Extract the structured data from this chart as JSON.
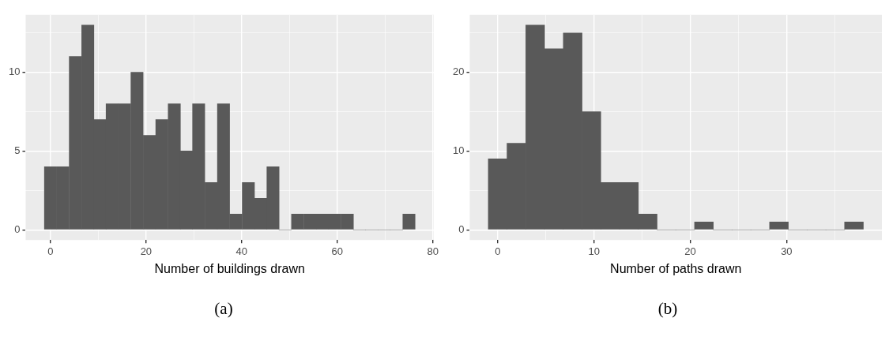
{
  "chart_data": [
    {
      "type": "histogram",
      "xlabel": "Number of buildings drawn",
      "color": "#595959",
      "grid": true,
      "bins": [
        -1.3,
        1.3,
        3.9,
        6.5,
        9.1,
        11.6,
        14.2,
        16.8,
        19.4,
        22.0,
        24.6,
        27.2,
        29.7,
        32.3,
        34.9,
        37.5,
        40.1,
        42.7,
        45.3,
        47.8,
        50.4,
        53.0,
        55.6,
        58.2,
        60.8,
        63.4,
        65.9,
        68.5,
        71.1,
        73.7,
        76.3
      ],
      "values": [
        4,
        4,
        11,
        13,
        7,
        8,
        8,
        10,
        6,
        7,
        8,
        5,
        8,
        3,
        8,
        1,
        3,
        2,
        4,
        0,
        1,
        1,
        1,
        1,
        1,
        0,
        0,
        0,
        0,
        1
      ],
      "xlim": [
        -5.2,
        80.2
      ],
      "xticks": [
        0,
        {
          "value": 10,
          "label": null
        },
        20,
        {
          "value": 30,
          "label": null
        },
        40,
        {
          "value": 50,
          "label": null
        },
        60,
        {
          "value": 70,
          "label": null
        },
        80
      ],
      "ylim": [
        -0.65,
        13.65
      ],
      "yticks": [
        0,
        {
          "value": 2.5,
          "label": null
        },
        5,
        {
          "value": 7.5,
          "label": null
        },
        10,
        {
          "value": 12.5,
          "label": null
        }
      ],
      "annotations": [
        "(a)"
      ]
    },
    {
      "type": "histogram",
      "xlabel": "Number of paths drawn",
      "color": "#595959",
      "grid": true,
      "bins": [
        -0.97,
        0.97,
        2.92,
        4.87,
        6.82,
        8.76,
        10.71,
        12.66,
        14.61,
        16.55,
        18.5,
        20.45,
        22.39,
        24.34,
        26.29,
        28.24,
        30.18,
        32.13,
        34.08,
        36.03,
        37.97
      ],
      "values": [
        9,
        11,
        26,
        23,
        25,
        15,
        6,
        6,
        2,
        0,
        0,
        1,
        0,
        0,
        0,
        1,
        0,
        0,
        0,
        1
      ],
      "xlim": [
        -2.9,
        39.9
      ],
      "xticks": [
        0,
        {
          "value": 5,
          "label": null
        },
        10,
        {
          "value": 15,
          "label": null
        },
        20,
        {
          "value": 25,
          "label": null
        },
        30,
        {
          "value": 35,
          "label": null
        }
      ],
      "ylim": [
        -1.3,
        27.3
      ],
      "yticks": [
        0,
        {
          "value": 5,
          "label": null
        },
        10,
        {
          "value": 15,
          "label": null
        },
        20,
        {
          "value": 25,
          "label": null
        }
      ],
      "annotations": [
        "(b)"
      ]
    }
  ]
}
